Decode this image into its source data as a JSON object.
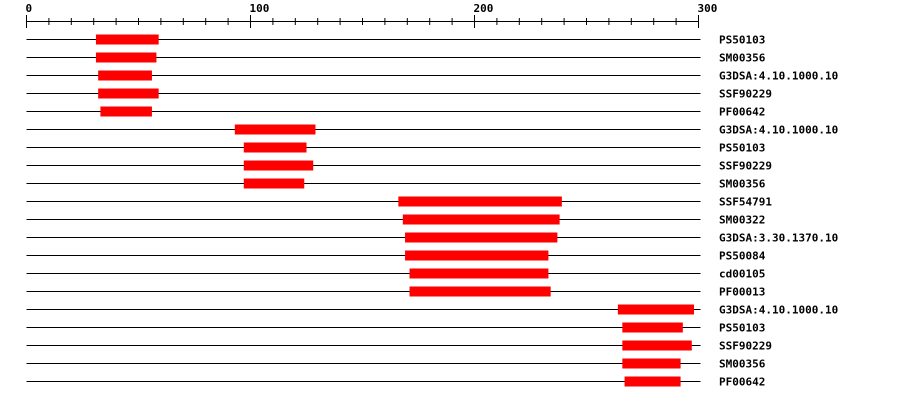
{
  "axis": {
    "min": 0,
    "max": 300,
    "major_step": 100,
    "minor_step": 10,
    "labels": [
      "0",
      "100",
      "200",
      "300"
    ]
  },
  "colors": {
    "domain_bar": "#ff0000",
    "line": "#000000"
  },
  "tracks": [
    {
      "label": "PS50103",
      "start": 31,
      "end": 59
    },
    {
      "label": "SM00356",
      "start": 31,
      "end": 58
    },
    {
      "label": "G3DSA:4.10.1000.10",
      "start": 32,
      "end": 56
    },
    {
      "label": "SSF90229",
      "start": 32,
      "end": 59
    },
    {
      "label": "PF00642",
      "start": 33,
      "end": 56
    },
    {
      "label": "G3DSA:4.10.1000.10",
      "start": 93,
      "end": 129
    },
    {
      "label": "PS50103",
      "start": 97,
      "end": 125
    },
    {
      "label": "SSF90229",
      "start": 97,
      "end": 128
    },
    {
      "label": "SM00356",
      "start": 97,
      "end": 124
    },
    {
      "label": "SSF54791",
      "start": 166,
      "end": 239
    },
    {
      "label": "SM00322",
      "start": 168,
      "end": 238
    },
    {
      "label": "G3DSA:3.30.1370.10",
      "start": 169,
      "end": 237
    },
    {
      "label": "PS50084",
      "start": 169,
      "end": 233
    },
    {
      "label": "cd00105",
      "start": 171,
      "end": 233
    },
    {
      "label": "PF00013",
      "start": 171,
      "end": 234
    },
    {
      "label": "G3DSA:4.10.1000.10",
      "start": 264,
      "end": 298
    },
    {
      "label": "PS50103",
      "start": 266,
      "end": 293
    },
    {
      "label": "SSF90229",
      "start": 266,
      "end": 297
    },
    {
      "label": "SM00356",
      "start": 266,
      "end": 292
    },
    {
      "label": "PF00642",
      "start": 267,
      "end": 292
    }
  ]
}
